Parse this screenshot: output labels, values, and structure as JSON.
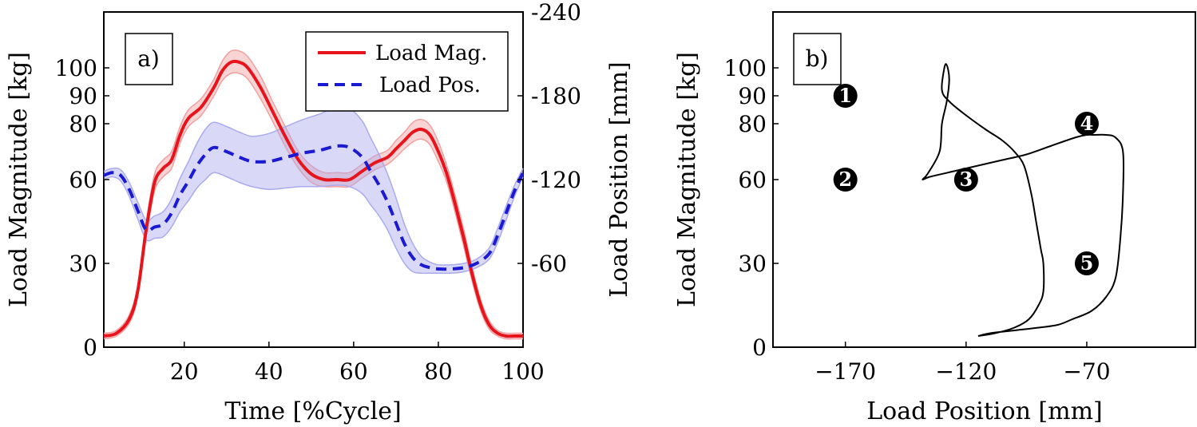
{
  "chart_data": [
    {
      "panel": "a)",
      "type": "line",
      "xlabel": "Time [%Cycle]",
      "ylabel": "Load Magnitude [kg]",
      "ylabel_right": "Load Position [mm]",
      "xlim": [
        1,
        100
      ],
      "xticks": [
        20,
        40,
        60,
        80,
        100
      ],
      "ylim": [
        0,
        120
      ],
      "yticks": [
        0,
        30,
        60,
        80,
        90,
        100
      ],
      "ylim_right": [
        -240,
        0
      ],
      "yticks_right": [
        -240,
        -180,
        -120,
        -60
      ],
      "y_right_inverted": true,
      "legend_position": "top-right",
      "legend": [
        "Load Mag.",
        "Load Pos."
      ],
      "series": [
        {
          "name": "Load Mag.",
          "axis": "left",
          "color": "#e8141c",
          "style": "solid",
          "band_color": "#f0a0a0",
          "x": [
            1,
            4,
            7,
            9,
            11,
            13,
            15,
            17,
            19,
            21,
            24,
            27,
            29,
            31,
            33,
            35,
            38,
            41,
            44,
            47,
            50,
            53,
            56,
            59,
            62,
            65,
            68,
            70,
            72,
            74,
            76,
            78,
            80,
            82,
            84,
            86,
            88,
            90,
            92,
            94,
            96,
            98,
            100
          ],
          "y": [
            4,
            5,
            10,
            20,
            42,
            59,
            64,
            67,
            76,
            82,
            86,
            93,
            99,
            102,
            102,
            100,
            93,
            84,
            75,
            67,
            62,
            60,
            60,
            60,
            63,
            66,
            68,
            71,
            74,
            77,
            78,
            76,
            70,
            62,
            51,
            39,
            26,
            15,
            8,
            5,
            4,
            4,
            4
          ],
          "band_halfwidth": [
            1,
            1,
            1.5,
            2,
            2.5,
            3,
            3,
            3,
            3,
            3,
            3,
            3,
            3.5,
            4,
            4,
            4,
            4,
            3.5,
            3.5,
            3,
            3,
            2.5,
            2.5,
            2.5,
            2.5,
            2.5,
            2.5,
            3,
            3,
            3.5,
            3.5,
            3.5,
            3.5,
            3,
            3,
            3,
            2.5,
            2,
            1.5,
            1,
            1,
            1,
            1
          ]
        },
        {
          "name": "Load Pos.",
          "axis": "right",
          "color": "#1a1ad2",
          "style": "dashed",
          "band_color": "#aaaaee",
          "x": [
            1,
            3,
            5,
            7,
            9,
            11,
            13,
            15,
            17,
            19,
            21,
            23,
            25,
            27,
            30,
            33,
            36,
            40,
            44,
            48,
            52,
            56,
            59,
            62,
            64,
            66,
            68,
            70,
            72,
            74,
            76,
            78,
            80,
            83,
            86,
            89,
            92,
            94,
            96,
            98,
            100
          ],
          "y": [
            -123,
            -125,
            -123,
            -113,
            -98,
            -84,
            -86,
            -88,
            -96,
            -109,
            -119,
            -130,
            -138,
            -143,
            -140,
            -136,
            -133,
            -133,
            -136,
            -139,
            -141,
            -144,
            -143,
            -136,
            -126,
            -116,
            -104,
            -89,
            -74,
            -64,
            -59,
            -57,
            -56,
            -56,
            -57,
            -60,
            -67,
            -80,
            -96,
            -112,
            -125
          ],
          "band_halfwidth": [
            3,
            3,
            4,
            5,
            6,
            7,
            8,
            9,
            10,
            12,
            14,
            16,
            18,
            18,
            18,
            18,
            18,
            20,
            22,
            24,
            26,
            28,
            28,
            26,
            24,
            22,
            20,
            18,
            14,
            10,
            6,
            4,
            3,
            3,
            3,
            3,
            4,
            5,
            5,
            4,
            3
          ]
        }
      ]
    },
    {
      "panel": "b)",
      "type": "line",
      "xlabel": "Load Position [mm]",
      "ylabel": "Load Magnitude [kg]",
      "xlim": [
        -200,
        -25
      ],
      "xticks": [
        -170,
        -120,
        -70
      ],
      "ylim": [
        0,
        120
      ],
      "yticks": [
        0,
        30,
        60,
        80,
        90,
        100
      ],
      "series": [
        {
          "color": "#000000",
          "x": [
            -115,
            -110,
            -100,
            -90,
            -82,
            -76,
            -68,
            -62,
            -58,
            -56,
            -55,
            -55,
            -58,
            -62,
            -67,
            -70,
            -75,
            -85,
            -95,
            -105,
            -115,
            -125,
            -135,
            -138,
            -136,
            -131,
            -130,
            -128,
            -127,
            -128,
            -129,
            -130,
            -127,
            -120,
            -112,
            -105,
            -100,
            -96,
            -93,
            -91,
            -89,
            -88,
            -88,
            -90,
            -94,
            -100,
            -108,
            -115
          ],
          "y": [
            4,
            5,
            6,
            7,
            8,
            10,
            13,
            18,
            25,
            40,
            55,
            70,
            75,
            76,
            76,
            76,
            75,
            72,
            69,
            67,
            65,
            63,
            61,
            60,
            62,
            70,
            80,
            88,
            96,
            101,
            100,
            92,
            88,
            83,
            78,
            74,
            70,
            65,
            55,
            45,
            35,
            30,
            20,
            15,
            10,
            7,
            5,
            4
          ]
        }
      ],
      "markers": [
        {
          "label": "1",
          "x": -170,
          "y": 90
        },
        {
          "label": "2",
          "x": -170,
          "y": 60
        },
        {
          "label": "3",
          "x": -120,
          "y": 60
        },
        {
          "label": "4",
          "x": -70,
          "y": 80
        },
        {
          "label": "5",
          "x": -70,
          "y": 30
        }
      ]
    }
  ]
}
